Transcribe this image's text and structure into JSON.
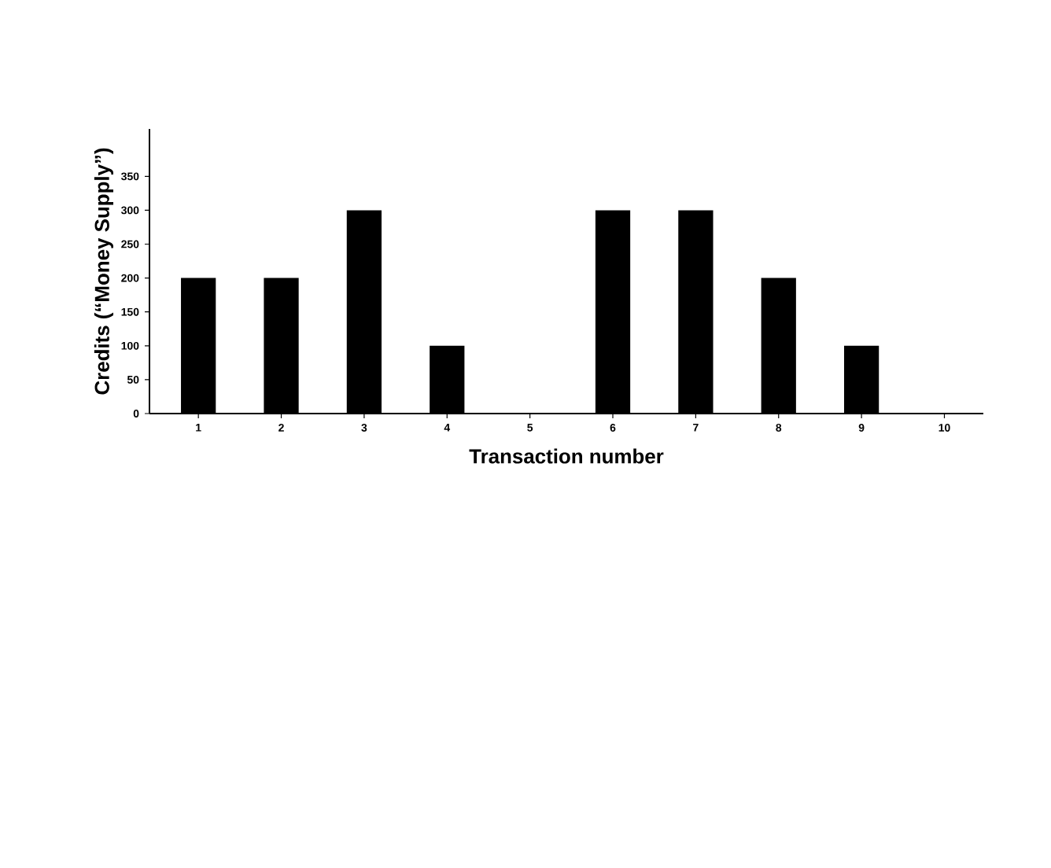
{
  "chart_data": {
    "type": "bar",
    "xlabel": "Transaction number",
    "ylabel": "Credits (“Money Supply”)",
    "categories": [
      "1",
      "2",
      "3",
      "4",
      "5",
      "6",
      "7",
      "8",
      "9",
      "10"
    ],
    "values": [
      200,
      200,
      300,
      100,
      0,
      300,
      300,
      200,
      100,
      0
    ],
    "color": "#000000",
    "ylim": [
      0,
      420
    ],
    "yticks": [
      0,
      50,
      100,
      150,
      200,
      250,
      300,
      350
    ],
    "grid": false
  }
}
